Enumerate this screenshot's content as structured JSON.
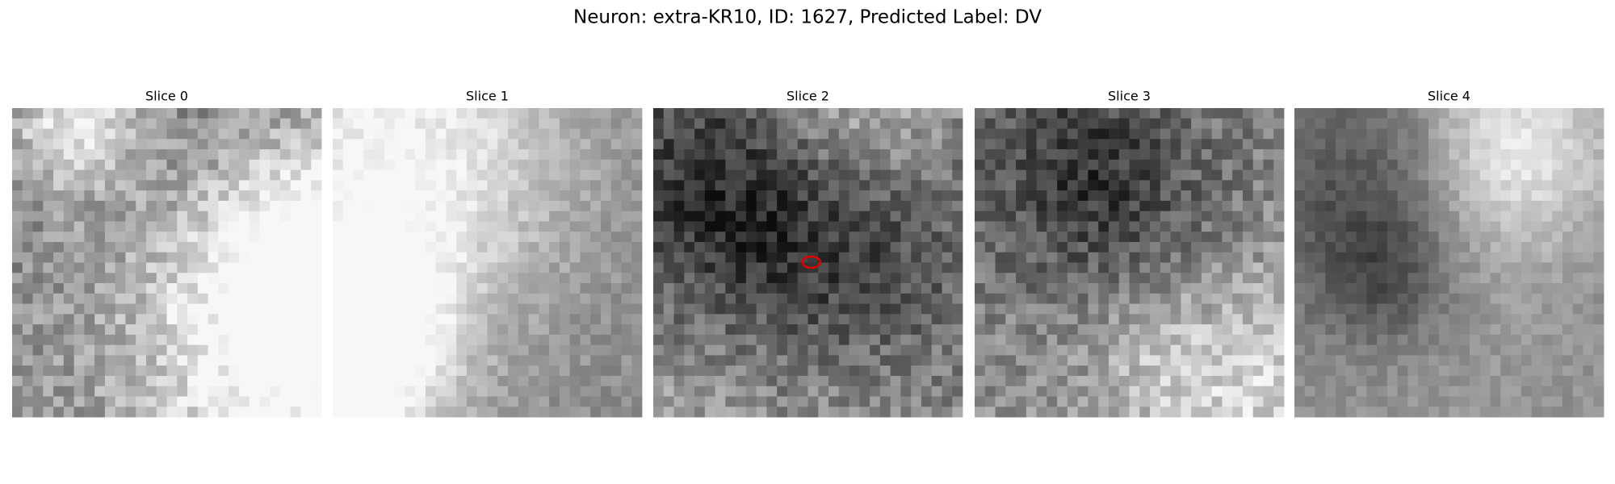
{
  "title": "Neuron: extra-KR10, ID: 1627, Predicted Label: DV",
  "panels": [
    {
      "title": "Slice 0"
    },
    {
      "title": "Slice 1"
    },
    {
      "title": "Slice 2"
    },
    {
      "title": "Slice 3"
    },
    {
      "title": "Slice 4"
    }
  ]
}
